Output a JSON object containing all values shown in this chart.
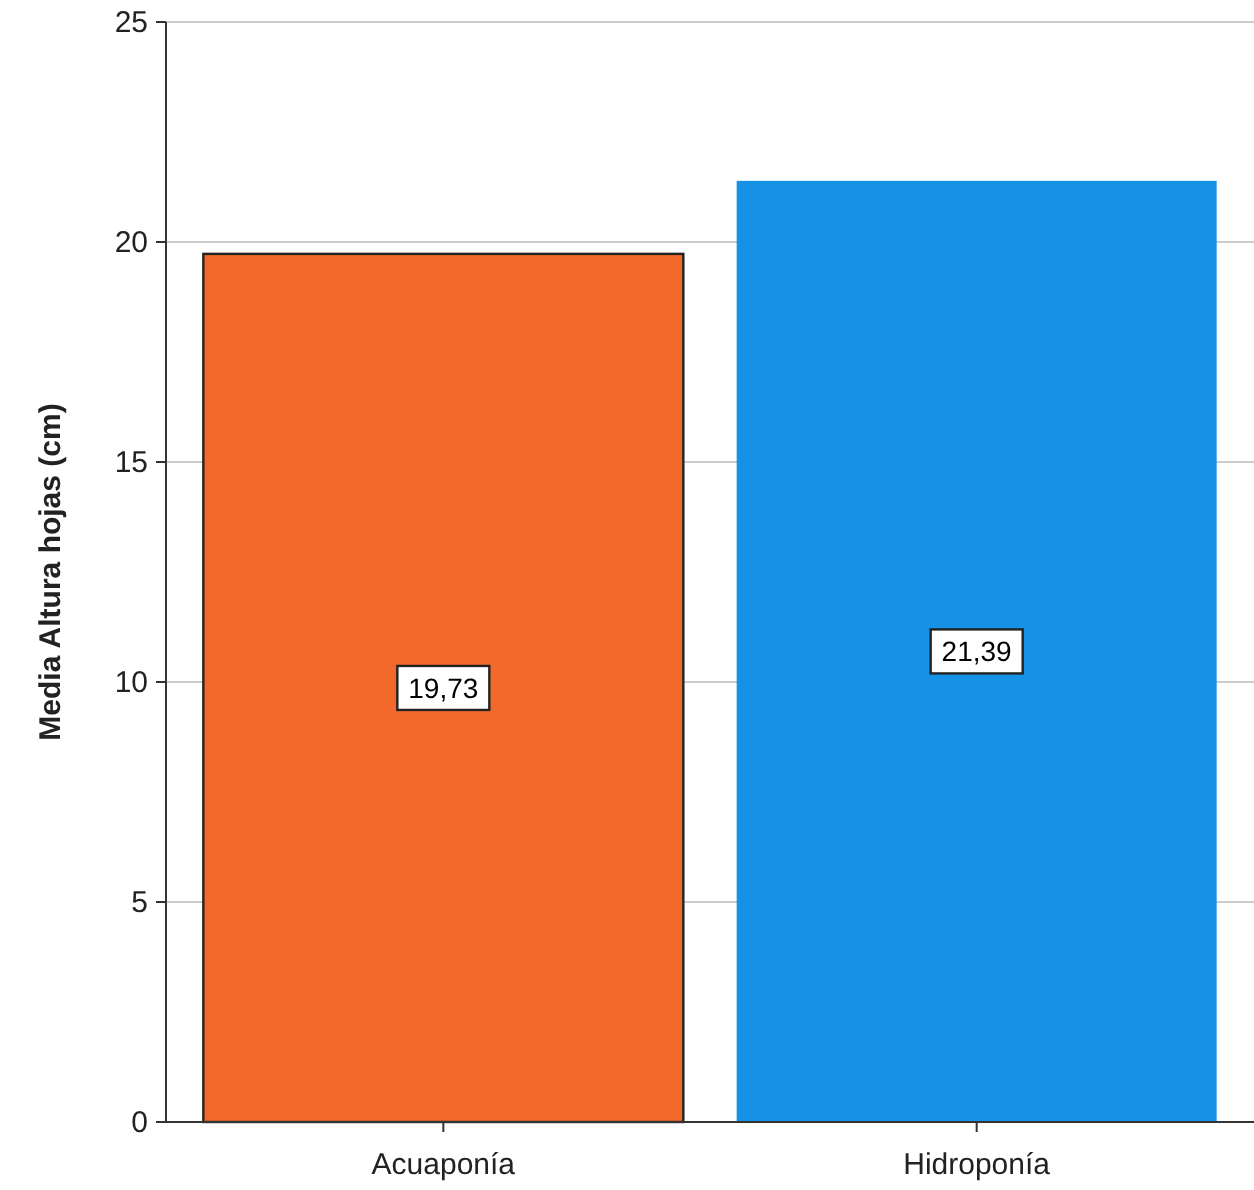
{
  "chart_data": {
    "type": "bar",
    "ylabel": "Media Altura hojas (cm)",
    "categories": [
      "Acuaponía",
      "Hidroponía"
    ],
    "values": [
      19.73,
      21.39
    ],
    "colors": [
      "#f2692b",
      "#1591e6"
    ],
    "value_labels": [
      "19,73",
      "21,39"
    ],
    "ylim": [
      0,
      25
    ],
    "yticks": [
      0,
      5,
      10,
      15,
      20,
      25
    ],
    "grid": "y"
  }
}
